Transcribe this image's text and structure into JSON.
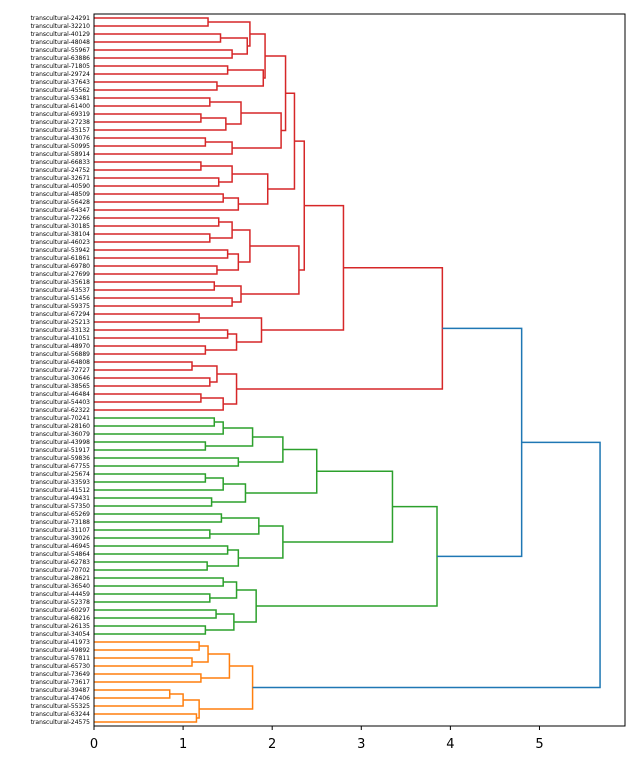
{
  "chart_data": {
    "type": "dendrogram",
    "orientation": "left",
    "title": "",
    "xlabel": "",
    "ylabel": "",
    "xlim": [
      0,
      5.96
    ],
    "xticks": [
      0,
      1,
      2,
      3,
      4,
      5
    ],
    "xtick_labels": [
      "0",
      "1",
      "2",
      "3",
      "4",
      "5"
    ],
    "grid": false,
    "colors": {
      "cluster_red": "#d62728",
      "cluster_green": "#2ca02c",
      "cluster_orange": "#ff7f0e",
      "above_threshold": "#1f77b4",
      "axis": "#000000"
    },
    "label_prefix": "transcultural-",
    "visible_label_examples": [
      "transcultural-24291",
      "transcultural-73617",
      "transcultural-24575"
    ],
    "clusters": [
      {
        "name": "red",
        "color": "#d62728",
        "tree": [
          3.91,
          [
            2.8,
            [
              2.36,
              [
                2.25,
                [
                  2.15,
                  [
                    1.92,
                    [
                      1.75,
                      [
                        1.28,
                        1.05,
                        0.98
                      ],
                      [
                        1.72,
                        [
                          1.42,
                          1.1,
                          1.0
                        ],
                        [
                          1.55,
                          1.18,
                          1.02
                        ]
                      ]
                    ],
                    [
                      1.9,
                      [
                        1.5,
                        1.2,
                        0.9
                      ],
                      [
                        1.38,
                        1.05,
                        1.1
                      ]
                    ]
                  ],
                  [
                    2.1,
                    [
                      1.65,
                      [
                        1.3,
                        1.1,
                        1.15
                      ],
                      [
                        1.48,
                        [
                          1.2,
                          1.0,
                          0.95
                        ],
                        1.12
                      ]
                    ],
                    [
                      1.55,
                      [
                        1.25,
                        1.05,
                        0.98
                      ],
                      1.0
                    ]
                  ]
                ],
                [
                  1.95,
                  [
                    1.55,
                    [
                      1.2,
                      1.08
                    ],
                    [
                      1.4,
                      1.0,
                      1.1
                    ]
                  ],
                  [
                    1.62,
                    [
                      1.45,
                      0.98,
                      1.05
                    ],
                    1.3
                  ]
                ]
              ],
              [
                2.3,
                [
                  1.75,
                  [
                    1.55,
                    [
                      1.4,
                      1.1,
                      1.02
                    ],
                    [
                      1.3,
                      1.15,
                      1.0
                    ]
                  ],
                  [
                    1.62,
                    [
                      1.5,
                      1.15,
                      1.05
                    ],
                    [
                      1.38,
                      1.0,
                      1.12
                    ]
                  ]
                ],
                [
                  1.65,
                  [
                    1.35,
                    1.25,
                    1.18
                  ],
                  [
                    1.55,
                    1.05,
                    1.1
                  ]
                ]
              ]
            ],
            [
              1.88,
              [
                1.18,
                1.0,
                0.85
              ],
              [
                1.6,
                [
                  1.5,
                  1.1,
                  1.3
                ],
                [
                  1.25,
                  1.05,
                  0.95
                ]
              ]
            ]
          ],
          [
            1.6,
            [
              1.38,
              [
                1.1,
                0.95,
                0.9
              ],
              [
                1.3,
                1.0,
                0.7
              ]
            ],
            [
              1.45,
              [
                1.2,
                1.1,
                0.8
              ],
              1.12
            ]
          ]
        ]
      },
      {
        "name": "green",
        "color": "#2ca02c",
        "tree": [
          3.85,
          [
            3.35,
            [
              2.5,
              [
                2.12,
                [
                  1.78,
                  [
                    1.45,
                    [
                      1.35,
                      1.28,
                      1.0
                    ],
                    1.22
                  ],
                  [
                    1.25,
                    1.05,
                    1.0
                  ]
                ],
                [
                  1.62,
                  1.3,
                  1.1
                ]
              ],
              [
                1.7,
                [
                  1.45,
                  [
                    1.25,
                    1.1,
                    1.2
                  ],
                  1.15
                ],
                [
                  1.32,
                  1.25,
                  0.75
                ]
              ]
            ],
            [
              2.12,
              [
                1.85,
                [
                  1.43,
                  1.15,
                  0.9
                ],
                [
                  1.3,
                  1.22,
                  1.18
                ]
              ],
              [
                1.62,
                [
                  1.5,
                  1.05,
                  0.7
                ],
                [
                  1.27,
                  1.0,
                  1.02
                ]
              ]
            ]
          ],
          [
            1.82,
            [
              1.6,
              [
                1.45,
                1.2,
                0.85
              ],
              [
                1.3,
                1.0,
                1.05
              ]
            ],
            [
              1.57,
              [
                1.37,
                1.1,
                1.0
              ],
              [
                1.25,
                1.3,
                0.95
              ]
            ]
          ]
        ]
      },
      {
        "name": "orange",
        "color": "#ff7f0e",
        "tree": [
          1.78,
          [
            1.52,
            [
              1.28,
              [
                1.18,
                1.05,
                1.0
              ],
              [
                1.1,
                1.02,
                0.98
              ]
            ],
            [
              1.2,
              1.12,
              1.08
            ]
          ],
          [
            1.18,
            [
              1.0,
              [
                0.85,
                0.8,
                0.82
              ],
              0.9
            ],
            [
              1.15,
              1.05,
              1.02
            ]
          ]
        ]
      }
    ],
    "top_merges": [
      {
        "left": "red",
        "right": "green",
        "height": 4.8,
        "color": "#1f77b4"
      },
      {
        "left": "red+green",
        "right": "orange",
        "height": 5.68,
        "color": "#1f77b4"
      }
    ],
    "leaf_count": 140
  }
}
